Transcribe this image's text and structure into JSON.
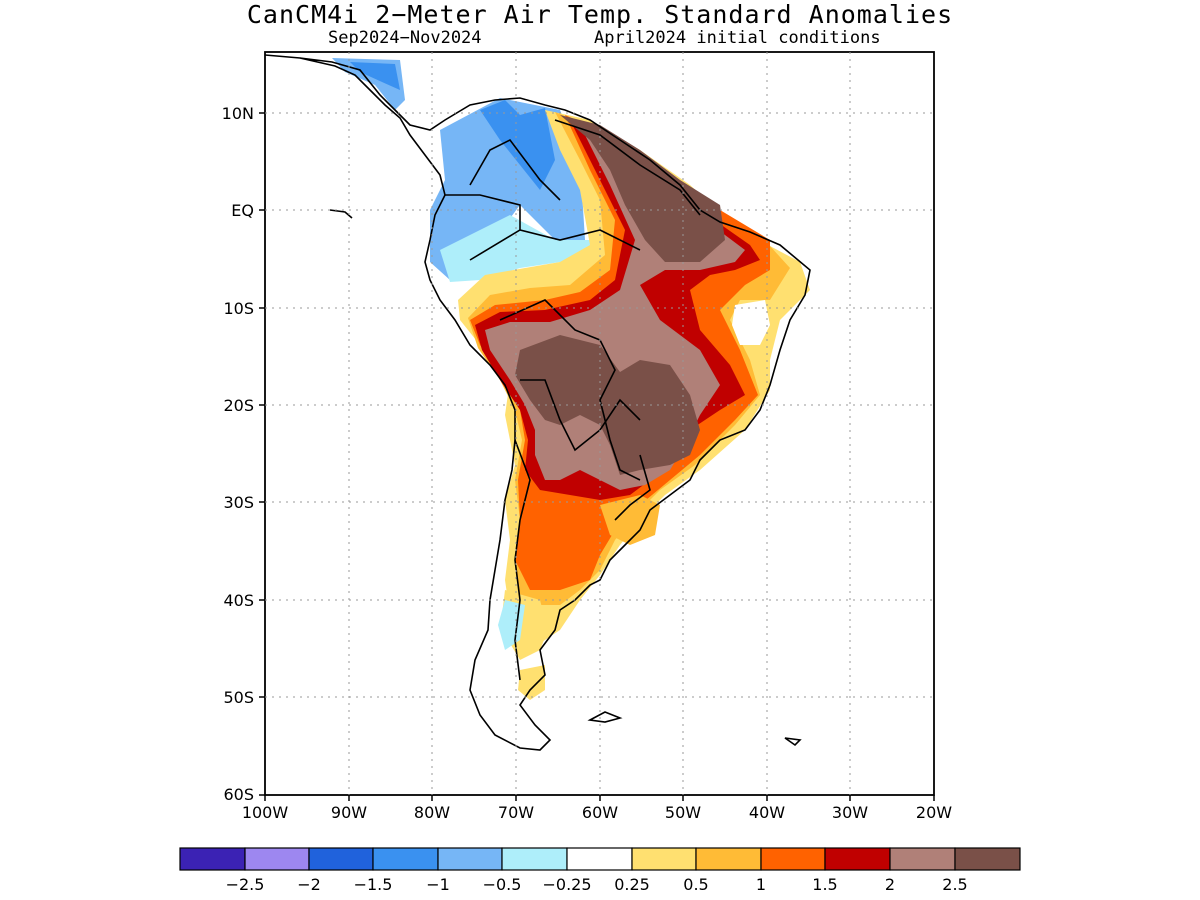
{
  "title": "CanCM4i 2−Meter Air Temp. Standard Anomalies",
  "subtitle_left": "Sep2024−Nov2024",
  "subtitle_right": "April2024 initial conditions",
  "lat_labels": [
    "10N",
    "EQ",
    "10S",
    "20S",
    "30S",
    "40S",
    "50S",
    "60S"
  ],
  "lon_labels": [
    "100W",
    "90W",
    "80W",
    "70W",
    "60W",
    "50W",
    "40W",
    "30W",
    "20W"
  ],
  "colorbar": {
    "colors": [
      "#3b22b4",
      "#9d87f0",
      "#2062dc",
      "#3a91f0",
      "#76b6f6",
      "#aeeefa",
      "#ffffff",
      "#ffe070",
      "#ffbb36",
      "#ff6200",
      "#c00000",
      "#b08078",
      "#7a5048"
    ],
    "labels": [
      "−2.5",
      "−2",
      "−1.5",
      "−1",
      "−0.5",
      "−0.25",
      "0.25",
      "0.5",
      "1",
      "1.5",
      "2",
      "2.5"
    ]
  }
}
